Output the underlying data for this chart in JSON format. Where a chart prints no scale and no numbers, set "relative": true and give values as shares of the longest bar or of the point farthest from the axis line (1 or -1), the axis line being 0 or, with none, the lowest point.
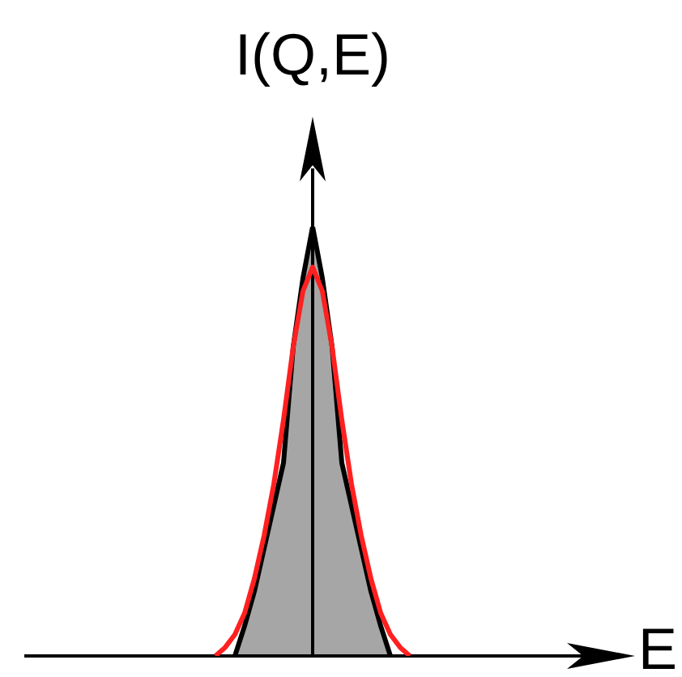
{
  "chart_data": {
    "type": "area",
    "relative": true,
    "xlabel": "E",
    "ylabel": "I(Q,E)",
    "legend": false,
    "categories": [
      null,
      null,
      null,
      null,
      null,
      null,
      null,
      null,
      null,
      null,
      null,
      null,
      null,
      null,
      null,
      null,
      null,
      null,
      null,
      null,
      null
    ],
    "series": [
      {
        "color": "#a6a6a6",
        "values": [
          null,
          null,
          0,
          0.07,
          0.15,
          0.25,
          0.35,
          0.45,
          0.72,
          0.88,
          1,
          0.88,
          0.72,
          0.45,
          0.35,
          0.25,
          0.15,
          0.07,
          0,
          null,
          null
        ]
      },
      {
        "type": "line",
        "color": "#ff2020",
        "values": [
          0,
          0.02,
          0.05,
          0.1,
          0.18,
          0.28,
          0.4,
          0.55,
          0.72,
          0.85,
          0.906,
          0.85,
          0.72,
          0.55,
          0.4,
          0.28,
          0.18,
          0.1,
          0.05,
          0.02,
          0
        ]
      }
    ]
  }
}
